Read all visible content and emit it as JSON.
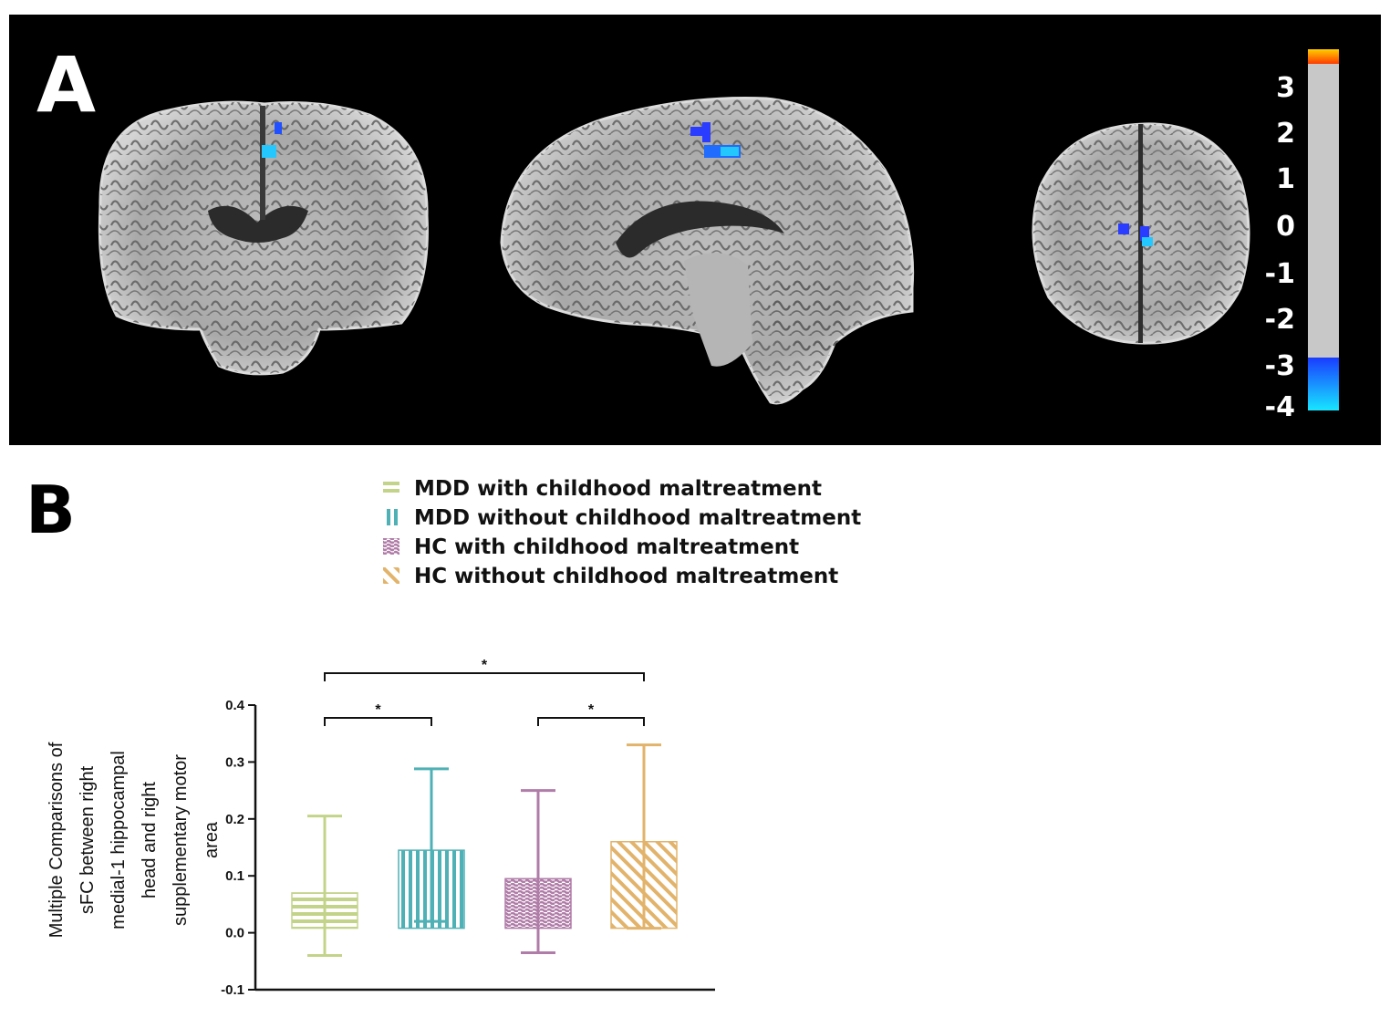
{
  "panel_a": {
    "letter": "A",
    "colorbar": {
      "labels": [
        "3",
        "2",
        "1",
        "0",
        "-1",
        "-2",
        "-3",
        "-4"
      ],
      "colors": {
        "hot": "#ff3a00",
        "hot_top": "#ffd000",
        "neutral": "#c8c8c8",
        "cool": "#1a3cff",
        "cool_bottom": "#18e6ff"
      }
    }
  },
  "panel_b": {
    "letter": "B"
  },
  "chart_data": {
    "type": "bar",
    "categories": [
      "MDD with childhood maltreatment",
      "MDD without childhood maltreatment",
      "HC with childhood maltreatment",
      "HC without childhood maltreatment"
    ],
    "series": [
      {
        "name": "MDD with childhood maltreatment",
        "value": 0.07,
        "error_low": -0.04,
        "error_high": 0.205,
        "color": "#c3d48a",
        "pattern": "horizontal"
      },
      {
        "name": "MDD without childhood maltreatment",
        "value": 0.145,
        "error_low": 0.02,
        "error_high": 0.288,
        "color": "#4fb1b5",
        "pattern": "vertical"
      },
      {
        "name": "HC with childhood maltreatment",
        "value": 0.095,
        "error_low": -0.035,
        "error_high": 0.25,
        "color": "#b07ca8",
        "pattern": "wave"
      },
      {
        "name": "HC without childhood maltreatment",
        "value": 0.16,
        "error_low": 0.008,
        "error_high": 0.33,
        "color": "#e2b36a",
        "pattern": "diagonal"
      }
    ],
    "ylabel": "Multiple Comparisons of sFC between right medial-1 hippocampal head and right supplementary motor area",
    "ylabel_lines": [
      "Multiple Comparisons of",
      "sFC between right",
      "medial-1 hippocampal",
      "head and right",
      "supplementary motor",
      "area"
    ],
    "ylim": [
      -0.1,
      0.4
    ],
    "yticks": [
      "-0.1",
      "0.0",
      "0.1",
      "0.2",
      "0.3",
      "0.4"
    ],
    "ytick_values": [
      -0.1,
      0.0,
      0.1,
      0.2,
      0.3,
      0.4
    ],
    "significance": [
      {
        "from": 0,
        "to": 3,
        "label": "*"
      },
      {
        "from": 0,
        "to": 1,
        "label": "*"
      },
      {
        "from": 2,
        "to": 3,
        "label": "*"
      }
    ],
    "legend_position": "top"
  }
}
